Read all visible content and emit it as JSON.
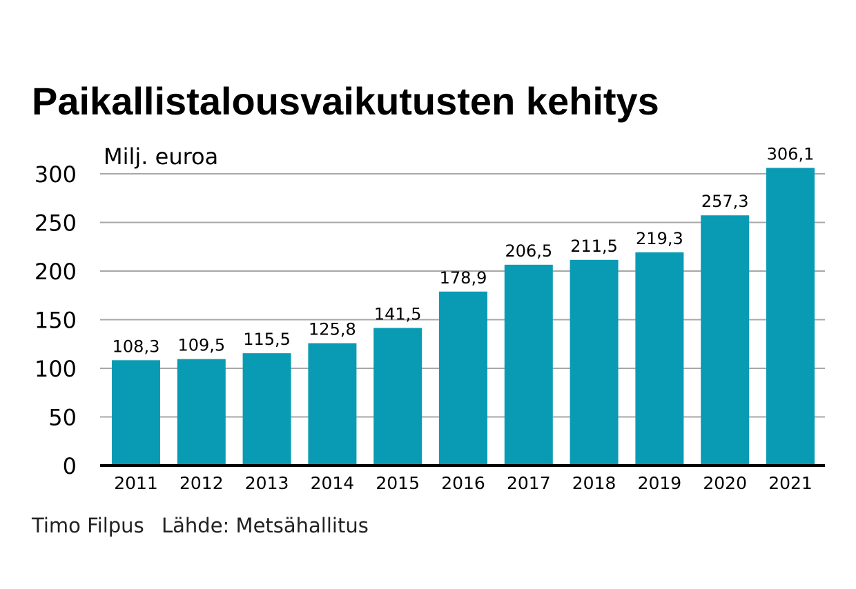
{
  "chart_data": {
    "type": "bar",
    "title": "Paikallistalousvaikutusten kehitys",
    "unit_label": "Milj. euroa",
    "categories": [
      "2011",
      "2012",
      "2013",
      "2014",
      "2015",
      "2016",
      "2017",
      "2018",
      "2019",
      "2020",
      "2021"
    ],
    "values": [
      108.3,
      109.5,
      115.5,
      125.8,
      141.5,
      178.9,
      206.5,
      211.5,
      219.3,
      257.3,
      306.1
    ],
    "data_labels": [
      "108,3",
      "109,5",
      "115,5",
      "125,8",
      "141,5",
      "178,9",
      "206,5",
      "211,5",
      "219,3",
      "257,3",
      "306,1"
    ],
    "ylim": [
      0,
      300
    ],
    "yticks": [
      0,
      50,
      100,
      150,
      200,
      250,
      300
    ],
    "grid": true,
    "bar_color": "#0a9bb4"
  },
  "footer": {
    "author": "Timo Filpus",
    "source": "Lähde: Metsähallitus"
  }
}
